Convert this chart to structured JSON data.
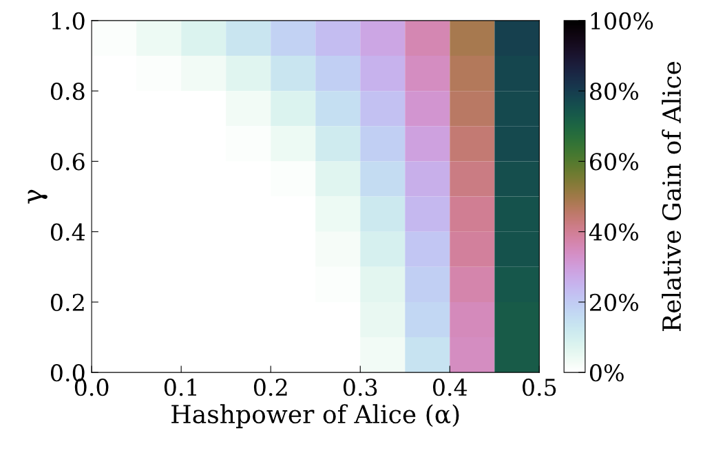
{
  "chart_data": {
    "type": "heatmap",
    "xlabel": "Hashpower of Alice (α)",
    "ylabel": "γ",
    "clabel": "Relative Gain of Alice",
    "x": [
      0.025,
      0.075,
      0.125,
      0.175,
      0.225,
      0.275,
      0.325,
      0.375,
      0.425,
      0.475
    ],
    "y": [
      0.95,
      0.85,
      0.75,
      0.65,
      0.55,
      0.45,
      0.35,
      0.25,
      0.15,
      0.05
    ],
    "xlim": [
      0,
      0.5
    ],
    "ylim": [
      0,
      1
    ],
    "xticks": [
      {
        "value": 0,
        "label": "0.0"
      },
      0.1,
      0.2,
      0.3,
      0.4,
      0.5
    ],
    "yticks": [
      {
        "value": 0,
        "label": "0.0"
      },
      0.2,
      0.4,
      0.6,
      0.8,
      {
        "value": 1,
        "label": "1.0"
      }
    ],
    "clim": [
      0,
      100
    ],
    "cticks": [
      {
        "value": 0,
        "label": "0%"
      },
      {
        "value": 20,
        "label": "20%"
      },
      {
        "value": 40,
        "label": "40%"
      },
      {
        "value": 60,
        "label": "60%"
      },
      {
        "value": 80,
        "label": "80%"
      },
      {
        "value": 100,
        "label": "100%"
      }
    ],
    "cells": [
      [
        1,
        4,
        8,
        13,
        18,
        23,
        28,
        36,
        49,
        79
      ],
      [
        0,
        1,
        3,
        7,
        13,
        19,
        25,
        34,
        47,
        78
      ],
      [
        0,
        0,
        0,
        3,
        8,
        15,
        22,
        32,
        46,
        77
      ],
      [
        0,
        0,
        0,
        1,
        4,
        11,
        19,
        29,
        44,
        77
      ],
      [
        0,
        0,
        0,
        0,
        1,
        7,
        16,
        26,
        42,
        76
      ],
      [
        0,
        0,
        0,
        0,
        0,
        4,
        12,
        24,
        40,
        75
      ],
      [
        0,
        0,
        0,
        0,
        0,
        2,
        9,
        21,
        39,
        75
      ],
      [
        0,
        0,
        0,
        0,
        0,
        1,
        6,
        19,
        37,
        74
      ],
      [
        0,
        0,
        0,
        0,
        0,
        0,
        5,
        17,
        35,
        73
      ],
      [
        0,
        0,
        0,
        0,
        0,
        0,
        3,
        14,
        34,
        73
      ]
    ]
  }
}
